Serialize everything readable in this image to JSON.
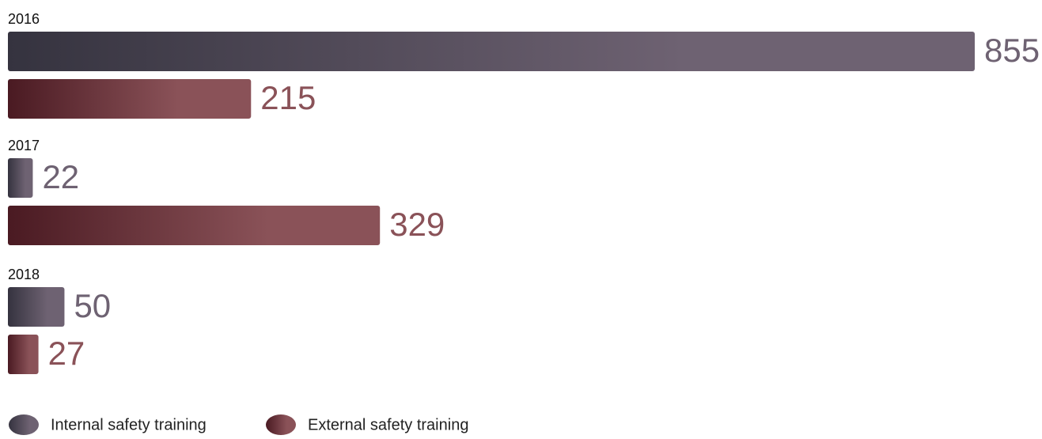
{
  "chart_data": {
    "type": "bar",
    "orientation": "horizontal",
    "categories": [
      "2016",
      "2017",
      "2018"
    ],
    "series": [
      {
        "name": "Internal safety training",
        "color": "#6e6272",
        "values": [
          855,
          22,
          50
        ]
      },
      {
        "name": "External safety training",
        "color": "#8a5258",
        "values": [
          215,
          329,
          27
        ]
      }
    ],
    "legend": "bottom-left"
  }
}
